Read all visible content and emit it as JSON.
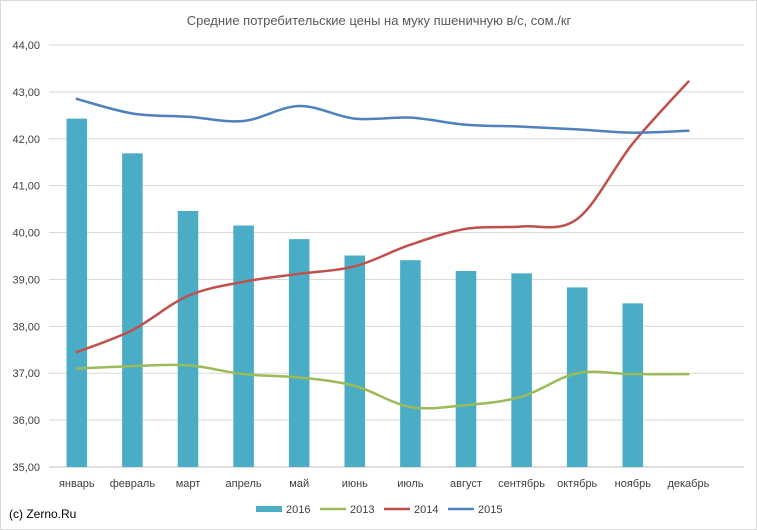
{
  "credit": "(c) Zerno.Ru",
  "chart_data": {
    "type": "bar+line",
    "title": "Средние потребительские цены на муку пшеничную в/с, сом./кг",
    "xlabel": "",
    "ylabel": "",
    "categories": [
      "январь",
      "февраль",
      "март",
      "апрель",
      "май",
      "июнь",
      "июль",
      "август",
      "сентябрь",
      "октябрь",
      "ноябрь",
      "декабрь"
    ],
    "ylim": [
      35,
      44
    ],
    "yticks": [
      "35,00",
      "36,00",
      "37,00",
      "38,00",
      "39,00",
      "40,00",
      "41,00",
      "42,00",
      "43,00",
      "44,00"
    ],
    "grid": true,
    "legend_position": "bottom",
    "series": [
      {
        "name": "2016",
        "kind": "bar",
        "color": "#4bacc6",
        "values": [
          42.43,
          41.69,
          40.46,
          40.15,
          39.86,
          39.51,
          39.41,
          39.18,
          39.13,
          38.83,
          38.49,
          null
        ]
      },
      {
        "name": "2013",
        "kind": "line",
        "color": "#9bbb59",
        "values": [
          37.1,
          37.15,
          37.17,
          36.98,
          36.91,
          36.73,
          36.28,
          36.32,
          36.5,
          37.0,
          36.98,
          36.98
        ]
      },
      {
        "name": "2014",
        "kind": "line",
        "color": "#c0504d",
        "values": [
          37.45,
          37.92,
          38.65,
          38.95,
          39.12,
          39.28,
          39.74,
          40.08,
          40.13,
          40.29,
          41.9,
          43.22
        ]
      },
      {
        "name": "2015",
        "kind": "line",
        "color": "#4f81bd",
        "values": [
          42.85,
          42.54,
          42.47,
          42.38,
          42.7,
          42.43,
          42.45,
          42.3,
          42.26,
          42.2,
          42.13,
          42.17
        ]
      }
    ]
  }
}
